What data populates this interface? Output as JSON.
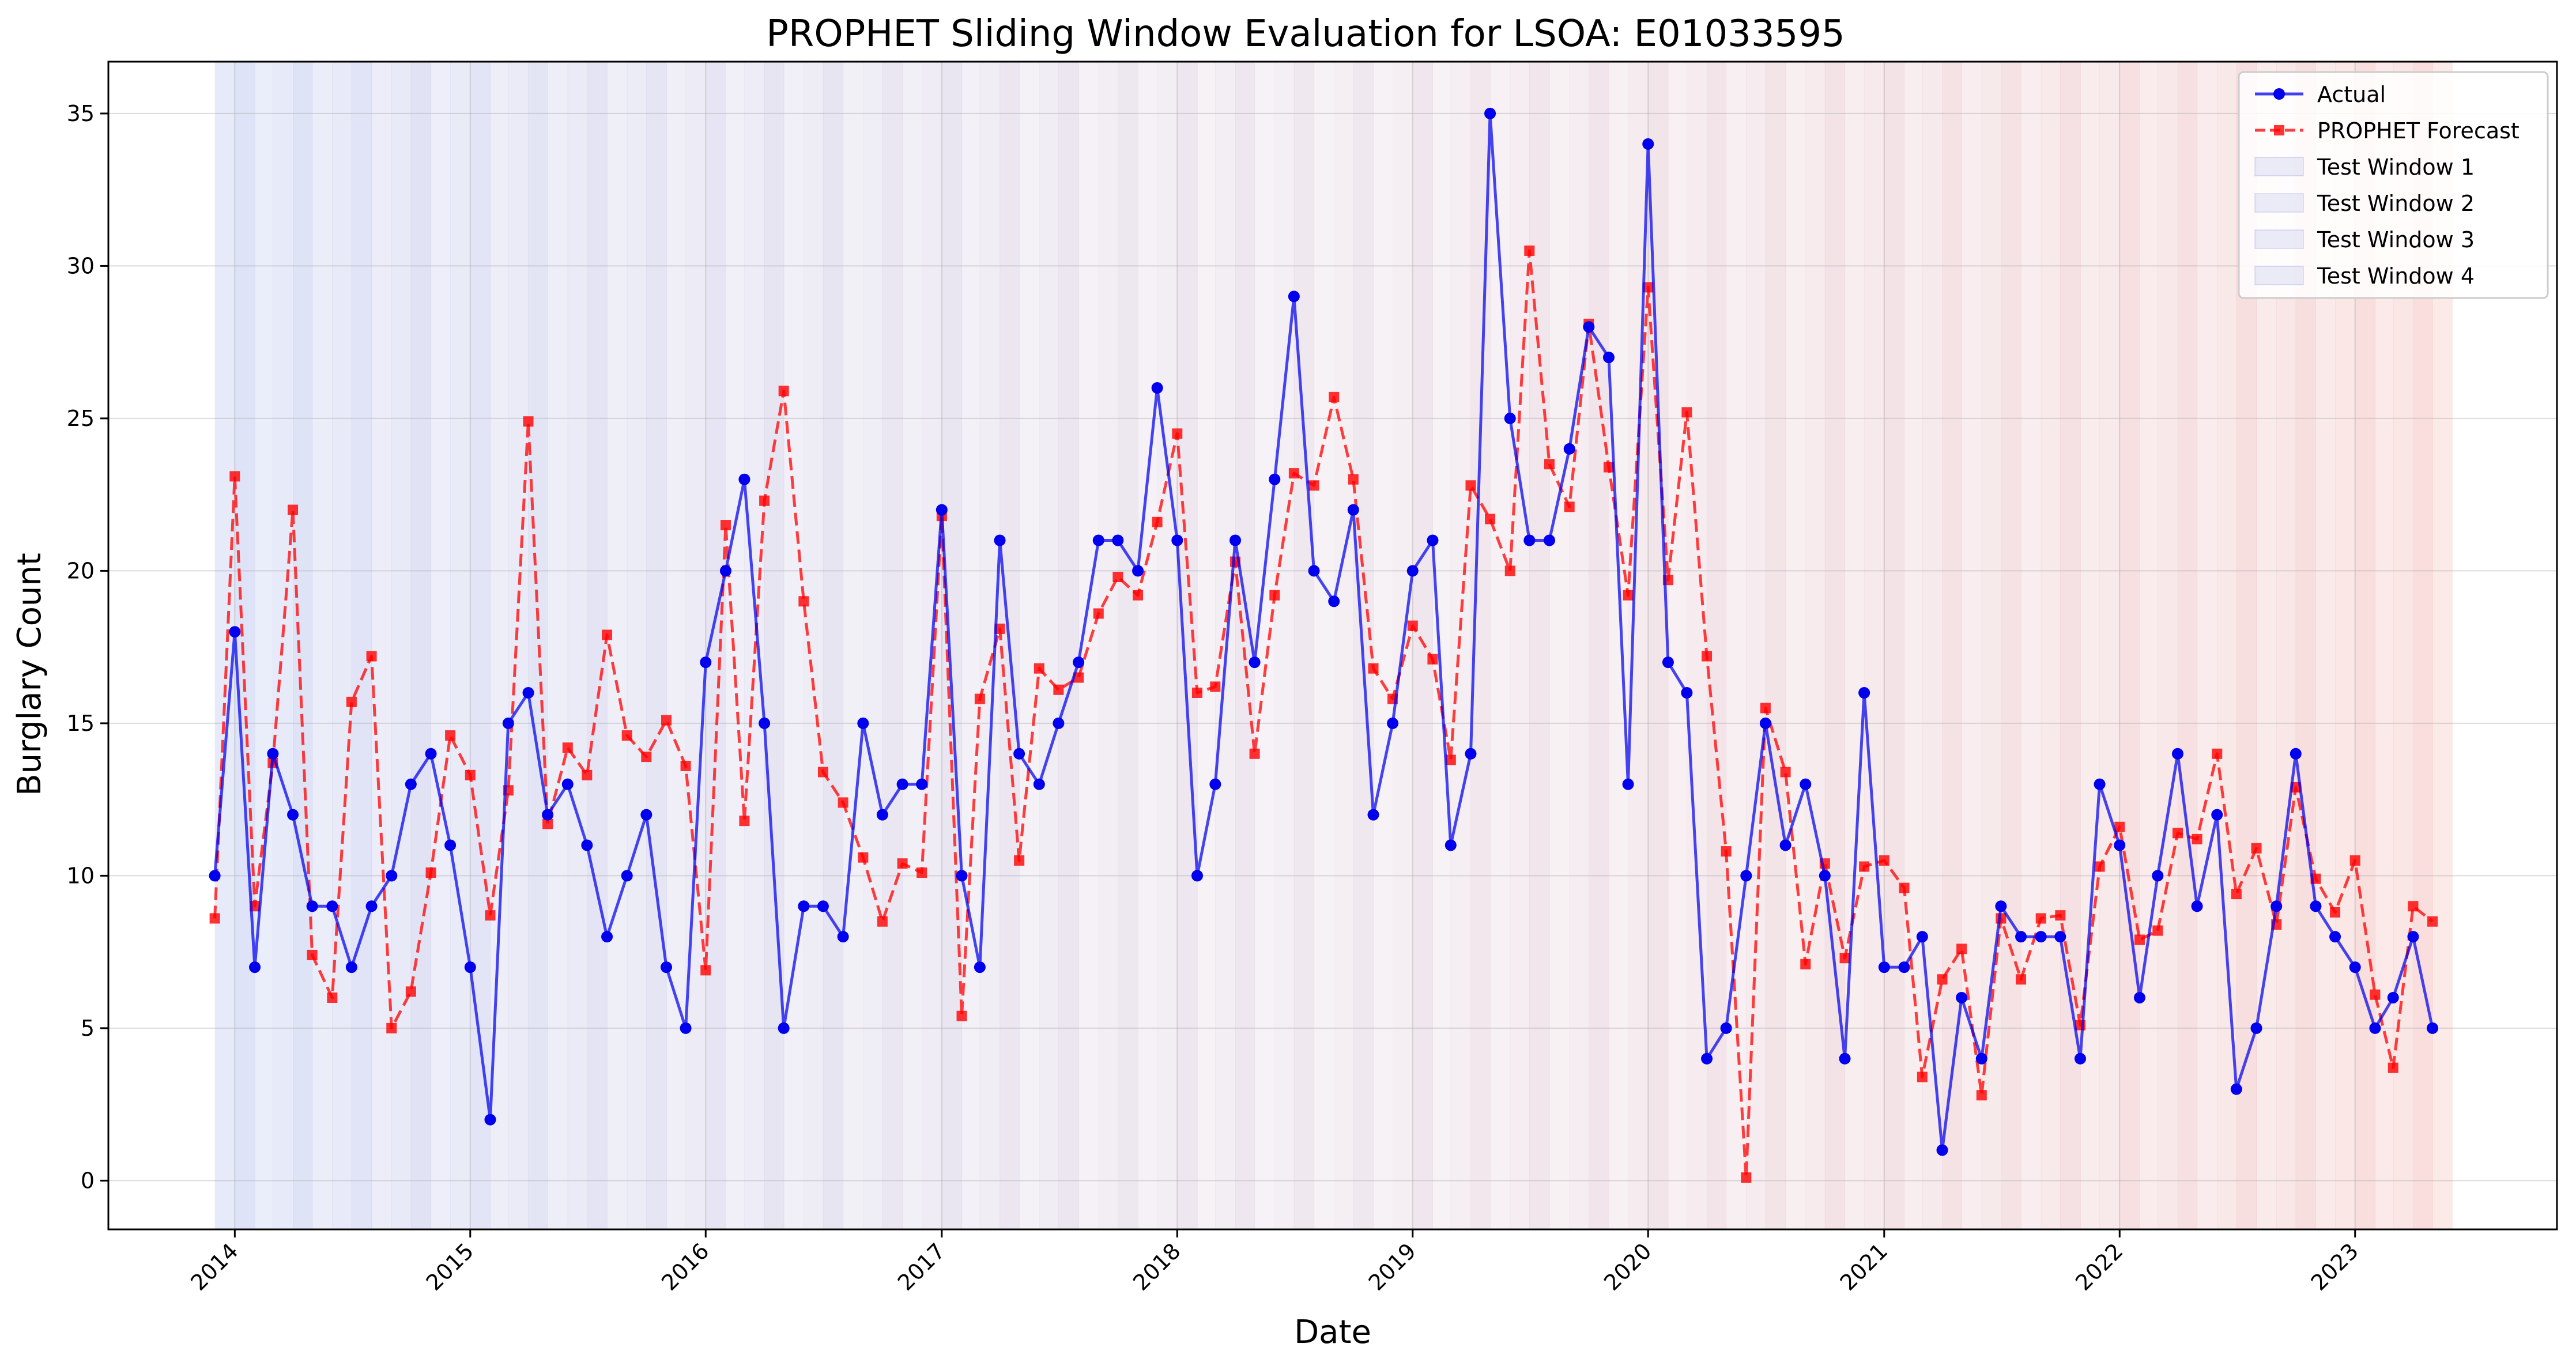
{
  "chart_data": {
    "type": "line",
    "title": "PROPHET Sliding Window Evaluation for LSOA: E01033595",
    "xlabel": "Date",
    "ylabel": "Burglary Count",
    "xlim": [
      "2013-06-19",
      "2023-11-10"
    ],
    "ylim": [
      -1.6,
      36.7
    ],
    "x_ticks": [
      "2014",
      "2015",
      "2016",
      "2017",
      "2018",
      "2019",
      "2020",
      "2021",
      "2022",
      "2023"
    ],
    "y_ticks": [
      0,
      5,
      10,
      15,
      20,
      25,
      30,
      35
    ],
    "grid": true,
    "legend_position": "top-right",
    "series": [
      {
        "name": "Actual",
        "color": "#0000ee",
        "style": "solid",
        "marker": "circle",
        "points": [
          [
            "2013-12",
            10
          ],
          [
            "2014-01",
            18
          ],
          [
            "2014-02",
            7
          ],
          [
            "2014-03",
            14
          ],
          [
            "2014-04",
            12
          ],
          [
            "2014-05",
            9
          ],
          [
            "2014-06",
            9
          ],
          [
            "2014-07",
            7
          ],
          [
            "2014-08",
            9
          ],
          [
            "2014-09",
            10
          ],
          [
            "2014-10",
            13
          ],
          [
            "2014-11",
            14
          ],
          [
            "2014-12",
            11
          ],
          [
            "2015-01",
            7
          ],
          [
            "2015-02",
            2
          ],
          [
            "2015-03",
            15
          ],
          [
            "2015-04",
            16
          ],
          [
            "2015-05",
            12
          ],
          [
            "2015-06",
            13
          ],
          [
            "2015-07",
            11
          ],
          [
            "2015-08",
            8
          ],
          [
            "2015-09",
            10
          ],
          [
            "2015-10",
            12
          ],
          [
            "2015-11",
            7
          ],
          [
            "2015-12",
            5
          ],
          [
            "2016-01",
            17
          ],
          [
            "2016-02",
            20
          ],
          [
            "2016-03",
            23
          ],
          [
            "2016-04",
            15
          ],
          [
            "2016-05",
            5
          ],
          [
            "2016-06",
            9
          ],
          [
            "2016-07",
            9
          ],
          [
            "2016-08",
            8
          ],
          [
            "2016-09",
            15
          ],
          [
            "2016-10",
            12
          ],
          [
            "2016-11",
            13
          ],
          [
            "2016-12",
            13
          ],
          [
            "2017-01",
            22
          ],
          [
            "2017-02",
            10
          ],
          [
            "2017-03",
            7
          ],
          [
            "2017-04",
            21
          ],
          [
            "2017-05",
            14
          ],
          [
            "2017-06",
            13
          ],
          [
            "2017-07",
            15
          ],
          [
            "2017-08",
            17
          ],
          [
            "2017-09",
            21
          ],
          [
            "2017-10",
            21
          ],
          [
            "2017-11",
            20
          ],
          [
            "2017-12",
            26
          ],
          [
            "2018-01",
            21
          ],
          [
            "2018-02",
            10
          ],
          [
            "2018-03",
            13
          ],
          [
            "2018-04",
            21
          ],
          [
            "2018-05",
            17
          ],
          [
            "2018-06",
            23
          ],
          [
            "2018-07",
            29
          ],
          [
            "2018-08",
            20
          ],
          [
            "2018-09",
            19
          ],
          [
            "2018-10",
            22
          ],
          [
            "2018-11",
            12
          ],
          [
            "2018-12",
            15
          ],
          [
            "2019-01",
            20
          ],
          [
            "2019-02",
            21
          ],
          [
            "2019-03",
            11
          ],
          [
            "2019-04",
            14
          ],
          [
            "2019-05",
            35
          ],
          [
            "2019-06",
            25
          ],
          [
            "2019-07",
            21
          ],
          [
            "2019-08",
            21
          ],
          [
            "2019-09",
            24
          ],
          [
            "2019-10",
            28
          ],
          [
            "2019-11",
            27
          ],
          [
            "2019-12",
            13
          ],
          [
            "2020-01",
            34
          ],
          [
            "2020-02",
            17
          ],
          [
            "2020-03",
            16
          ],
          [
            "2020-04",
            4
          ],
          [
            "2020-05",
            5
          ],
          [
            "2020-06",
            10
          ],
          [
            "2020-07",
            15
          ],
          [
            "2020-08",
            11
          ],
          [
            "2020-09",
            13
          ],
          [
            "2020-10",
            10
          ],
          [
            "2020-11",
            4
          ],
          [
            "2020-12",
            16
          ],
          [
            "2021-01",
            7
          ],
          [
            "2021-02",
            7
          ],
          [
            "2021-03",
            8
          ],
          [
            "2021-04",
            1
          ],
          [
            "2021-05",
            6
          ],
          [
            "2021-06",
            4
          ],
          [
            "2021-07",
            9
          ],
          [
            "2021-08",
            8
          ],
          [
            "2021-09",
            8
          ],
          [
            "2021-10",
            8
          ],
          [
            "2021-11",
            4
          ],
          [
            "2021-12",
            13
          ],
          [
            "2022-01",
            11
          ],
          [
            "2022-02",
            6
          ],
          [
            "2022-03",
            10
          ],
          [
            "2022-04",
            14
          ],
          [
            "2022-05",
            9
          ],
          [
            "2022-06",
            12
          ],
          [
            "2022-07",
            3
          ],
          [
            "2022-08",
            5
          ],
          [
            "2022-09",
            9
          ],
          [
            "2022-10",
            14
          ],
          [
            "2022-11",
            9
          ],
          [
            "2022-12",
            8
          ],
          [
            "2023-01",
            7
          ],
          [
            "2023-02",
            5
          ],
          [
            "2023-03",
            6
          ],
          [
            "2023-04",
            8
          ],
          [
            "2023-05",
            5
          ]
        ]
      },
      {
        "name": "PROPHET Forecast",
        "color": "#ff0000",
        "style": "dashed",
        "marker": "square",
        "points": [
          [
            "2013-12",
            8.6
          ],
          [
            "2014-01",
            23.1
          ],
          [
            "2014-02",
            9.0
          ],
          [
            "2014-03",
            13.7
          ],
          [
            "2014-04",
            22.0
          ],
          [
            "2014-05",
            7.4
          ],
          [
            "2014-06",
            6.0
          ],
          [
            "2014-07",
            15.7
          ],
          [
            "2014-08",
            17.2
          ],
          [
            "2014-09",
            5.0
          ],
          [
            "2014-10",
            6.2
          ],
          [
            "2014-11",
            10.1
          ],
          [
            "2014-12",
            14.6
          ],
          [
            "2015-01",
            13.3
          ],
          [
            "2015-02",
            8.7
          ],
          [
            "2015-03",
            12.8
          ],
          [
            "2015-04",
            24.9
          ],
          [
            "2015-05",
            11.7
          ],
          [
            "2015-06",
            14.2
          ],
          [
            "2015-07",
            13.3
          ],
          [
            "2015-08",
            17.9
          ],
          [
            "2015-09",
            14.6
          ],
          [
            "2015-10",
            13.9
          ],
          [
            "2015-11",
            15.1
          ],
          [
            "2015-12",
            13.6
          ],
          [
            "2016-01",
            6.9
          ],
          [
            "2016-02",
            21.5
          ],
          [
            "2016-03",
            11.8
          ],
          [
            "2016-04",
            22.3
          ],
          [
            "2016-05",
            25.9
          ],
          [
            "2016-06",
            19.0
          ],
          [
            "2016-07",
            13.4
          ],
          [
            "2016-08",
            12.4
          ],
          [
            "2016-09",
            10.6
          ],
          [
            "2016-10",
            8.5
          ],
          [
            "2016-11",
            10.4
          ],
          [
            "2016-12",
            10.1
          ],
          [
            "2017-01",
            21.8
          ],
          [
            "2017-02",
            5.4
          ],
          [
            "2017-03",
            15.8
          ],
          [
            "2017-04",
            18.1
          ],
          [
            "2017-05",
            10.5
          ],
          [
            "2017-06",
            16.8
          ],
          [
            "2017-07",
            16.1
          ],
          [
            "2017-08",
            16.5
          ],
          [
            "2017-09",
            18.6
          ],
          [
            "2017-10",
            19.8
          ],
          [
            "2017-11",
            19.2
          ],
          [
            "2017-12",
            21.6
          ],
          [
            "2018-01",
            24.5
          ],
          [
            "2018-02",
            16.0
          ],
          [
            "2018-03",
            16.2
          ],
          [
            "2018-04",
            20.3
          ],
          [
            "2018-05",
            14.0
          ],
          [
            "2018-06",
            19.2
          ],
          [
            "2018-07",
            23.2
          ],
          [
            "2018-08",
            22.8
          ],
          [
            "2018-09",
            25.7
          ],
          [
            "2018-10",
            23.0
          ],
          [
            "2018-11",
            16.8
          ],
          [
            "2018-12",
            15.8
          ],
          [
            "2019-01",
            18.2
          ],
          [
            "2019-02",
            17.1
          ],
          [
            "2019-03",
            13.8
          ],
          [
            "2019-04",
            22.8
          ],
          [
            "2019-05",
            21.7
          ],
          [
            "2019-06",
            20.0
          ],
          [
            "2019-07",
            30.5
          ],
          [
            "2019-08",
            23.5
          ],
          [
            "2019-09",
            22.1
          ],
          [
            "2019-10",
            28.1
          ],
          [
            "2019-11",
            23.4
          ],
          [
            "2019-12",
            19.2
          ],
          [
            "2020-01",
            29.3
          ],
          [
            "2020-02",
            19.7
          ],
          [
            "2020-03",
            25.2
          ],
          [
            "2020-04",
            17.2
          ],
          [
            "2020-05",
            10.8
          ],
          [
            "2020-06",
            0.1
          ],
          [
            "2020-07",
            15.5
          ],
          [
            "2020-08",
            13.4
          ],
          [
            "2020-09",
            7.1
          ],
          [
            "2020-10",
            10.4
          ],
          [
            "2020-11",
            7.3
          ],
          [
            "2020-12",
            10.3
          ],
          [
            "2021-01",
            10.5
          ],
          [
            "2021-02",
            9.6
          ],
          [
            "2021-03",
            3.4
          ],
          [
            "2021-04",
            6.6
          ],
          [
            "2021-05",
            7.6
          ],
          [
            "2021-06",
            2.8
          ],
          [
            "2021-07",
            8.6
          ],
          [
            "2021-08",
            6.6
          ],
          [
            "2021-09",
            8.6
          ],
          [
            "2021-10",
            8.7
          ],
          [
            "2021-11",
            5.1
          ],
          [
            "2021-12",
            10.3
          ],
          [
            "2022-01",
            11.6
          ],
          [
            "2022-02",
            7.9
          ],
          [
            "2022-03",
            8.2
          ],
          [
            "2022-04",
            11.4
          ],
          [
            "2022-05",
            11.2
          ],
          [
            "2022-06",
            14.0
          ],
          [
            "2022-07",
            9.4
          ],
          [
            "2022-08",
            10.9
          ],
          [
            "2022-09",
            8.4
          ],
          [
            "2022-10",
            12.9
          ],
          [
            "2022-11",
            9.9
          ],
          [
            "2022-12",
            8.8
          ],
          [
            "2023-01",
            10.5
          ],
          [
            "2023-02",
            6.1
          ],
          [
            "2023-03",
            3.7
          ],
          [
            "2023-04",
            9.0
          ],
          [
            "2023-05",
            8.5
          ]
        ]
      }
    ],
    "test_windows": {
      "start": "2013-12",
      "end": "2023-05",
      "legend_entries": [
        "Test Window 1",
        "Test Window 2",
        "Test Window 3",
        "Test Window 4"
      ],
      "color_early": "#3c5ad2",
      "color_late": "#dc3c32"
    }
  }
}
